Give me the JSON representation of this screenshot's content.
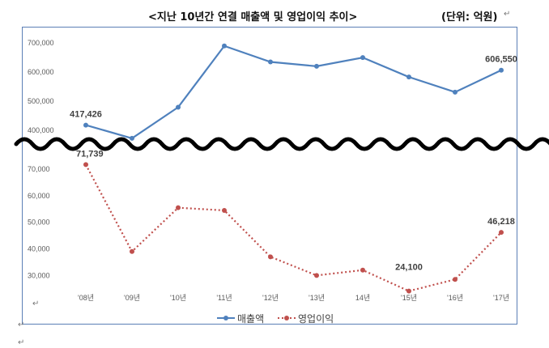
{
  "header": {
    "title": "<지난 10년간 연결 매출액 및 영업이익 추이>",
    "unit": "(단위: 억원)"
  },
  "colors": {
    "revenue": "#4f81bd",
    "operating_profit": "#c0504d",
    "break_line": "#000000",
    "frame": "#5b7fb6"
  },
  "chart_data": {
    "type": "line",
    "title": "<지난 10년간 연결 매출액 및 영업이익 추이>",
    "xlabel": "",
    "ylabel": "",
    "categories": [
      "'08년",
      "'09년",
      "'10년",
      "'11년",
      "'12년",
      "'13년",
      "14년",
      "'15년",
      "'16년",
      "'17년"
    ],
    "series": [
      {
        "name": "매출액",
        "values": [
          417426,
          372000,
          479000,
          690000,
          635000,
          620000,
          650000,
          583000,
          531000,
          606550
        ],
        "ylim": [
          380000,
          720000
        ],
        "yticks": [
          "400,000",
          "500,000",
          "600,000",
          "700,000"
        ],
        "ytick_values": [
          400000,
          500000,
          600000,
          700000
        ],
        "labels": [
          {
            "index": 0,
            "text": "417,426"
          },
          {
            "index": 9,
            "text": "606,550"
          }
        ],
        "style": "solid"
      },
      {
        "name": "영업이익",
        "values": [
          71739,
          39000,
          55500,
          54500,
          37000,
          30000,
          32000,
          24100,
          28500,
          46218
        ],
        "ylim": [
          24000,
          74000
        ],
        "yticks": [
          "30,000",
          "40,000",
          "50,000",
          "60,000",
          "70,000"
        ],
        "ytick_values": [
          30000,
          40000,
          50000,
          60000,
          70000
        ],
        "labels": [
          {
            "index": 0,
            "text": "71,739"
          },
          {
            "index": 7,
            "text": "24,100"
          },
          {
            "index": 9,
            "text": "46,218"
          }
        ],
        "style": "dotted"
      }
    ],
    "legend": {
      "position": "bottom",
      "entries": [
        "매출액",
        "영업이익"
      ]
    },
    "grid": false,
    "axis_break": true
  }
}
